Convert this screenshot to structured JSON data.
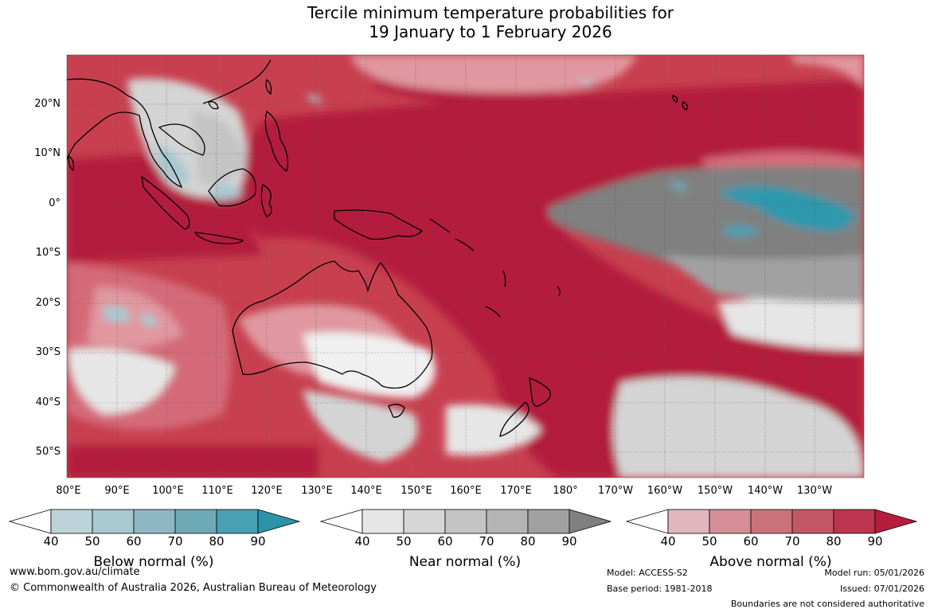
{
  "title": {
    "line1": "Tercile minimum temperature probabilities for",
    "line2": "19 January to 1 February 2026"
  },
  "map": {
    "lat_labels": [
      "20°N",
      "10°N",
      "0°",
      "10°S",
      "20°S",
      "30°S",
      "40°S",
      "50°S"
    ],
    "lon_labels": [
      "80°E",
      "90°E",
      "100°E",
      "110°E",
      "120°E",
      "130°E",
      "140°E",
      "150°E",
      "160°E",
      "170°E",
      "180°",
      "170°W",
      "160°W",
      "150°W",
      "140°W",
      "130°W"
    ],
    "colors": {
      "above_90": "#b41e3c",
      "above_80": "#c8404f",
      "above_70": "#d46a78",
      "above_60": "#e0979f",
      "above_50": "#eabdc2",
      "near": "#d4d4d4",
      "near_dark": "#808080",
      "below": "#a8c8d0",
      "below_strong": "#2f98ad",
      "coast": "#000000"
    }
  },
  "colorbars": [
    {
      "title": "Below normal (%)",
      "ticks": [
        "40",
        "50",
        "60",
        "70",
        "80",
        "90"
      ],
      "colors": [
        "#ffffff",
        "#bcd3da",
        "#a7c9cf",
        "#8eb7c4",
        "#6eaab6",
        "#47a0b3",
        "#2d93a9"
      ]
    },
    {
      "title": "Near normal (%)",
      "ticks": [
        "40",
        "50",
        "60",
        "70",
        "80",
        "90"
      ],
      "colors": [
        "#ffffff",
        "#e6e6e6",
        "#d6d6d6",
        "#c4c4c4",
        "#b4b4b4",
        "#a1a1a1",
        "#808080"
      ]
    },
    {
      "title": "Above normal (%)",
      "ticks": [
        "40",
        "50",
        "60",
        "70",
        "80",
        "90"
      ],
      "colors": [
        "#ffffff",
        "#e2b6bd",
        "#d68e96",
        "#cc727b",
        "#c45766",
        "#bb3550",
        "#b41e3c"
      ]
    }
  ],
  "footer": {
    "website": "www.bom.gov.au/climate",
    "copyright": "© Commonwealth of Australia 2026, Australian Bureau of Meteorology",
    "model": "Model: ACCESS-S2",
    "base_period": "Base period: 1981-2018",
    "model_run": "Model run: 05/01/2026",
    "issued": "Issued: 07/01/2026",
    "disclaimer": "Boundaries are not considered authoritative"
  }
}
